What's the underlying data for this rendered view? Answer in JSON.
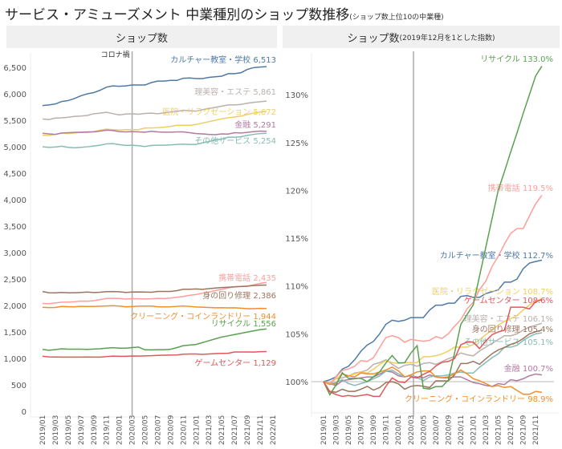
{
  "title": {
    "main": "サービス・アミューズメント 中業種別のショップ数推移",
    "sub": "(ショップ数上位10の中業種)"
  },
  "panels": {
    "left": {
      "header": "ショップ数"
    },
    "right": {
      "header_main": "ショップ数",
      "header_sub": "(2019年12月を1とした指数)"
    }
  },
  "chart_data": [
    {
      "type": "line",
      "title": "ショップ数",
      "annotation": "コロナ禍",
      "annotation_at": "2020/03",
      "x_start": "2019/01",
      "x_end": "2021/12",
      "x_tick_labels": [
        "2019/01",
        "2019/03",
        "2019/05",
        "2019/07",
        "2019/09",
        "2019/11",
        "2020/01",
        "2020/03",
        "2020/05",
        "2020/07",
        "2020/09",
        "2020/11",
        "2021/01",
        "2021/03",
        "2021/05",
        "2021/07",
        "2021/09",
        "2021/11",
        "2022/01"
      ],
      "ylim": [
        0,
        6800
      ],
      "y_ticks": [
        0,
        500,
        1000,
        1500,
        2000,
        2500,
        3000,
        3500,
        4000,
        4500,
        5000,
        5500,
        6000,
        6500
      ],
      "y_tick_labels": [
        "0",
        "500",
        "1,000",
        "1,500",
        "2,000",
        "2,500",
        "3,000",
        "3,500",
        "4,000",
        "4,500",
        "5,000",
        "5,500",
        "6,000",
        "6,500"
      ],
      "grid": false,
      "series": [
        {
          "name": "カルチャー教室・学校",
          "label": "カルチャー教室・学校 6,513",
          "color": "#4e79a7",
          "values": [
            5779,
            5790,
            5808,
            5855,
            5872,
            5912,
            5963,
            6000,
            6022,
            6068,
            6126,
            6150,
            6143,
            6150,
            6166,
            6166,
            6166,
            6212,
            6241,
            6241,
            6253,
            6253,
            6294,
            6299,
            6288,
            6288,
            6311,
            6322,
            6334,
            6380,
            6380,
            6398,
            6461,
            6495,
            6505,
            6513
          ]
        },
        {
          "name": "理美容・エステ",
          "label": "理美容・エステ 5,861",
          "color": "#bab0ac",
          "values": [
            5524,
            5513,
            5541,
            5546,
            5557,
            5574,
            5580,
            5591,
            5624,
            5634,
            5651,
            5624,
            5601,
            5618,
            5624,
            5613,
            5629,
            5634,
            5624,
            5640,
            5657,
            5668,
            5690,
            5679,
            5673,
            5701,
            5723,
            5745,
            5767,
            5789,
            5789,
            5800,
            5822,
            5839,
            5850,
            5861
          ]
        },
        {
          "name": "医院・リラクゼーション",
          "label": "医院・リラクゼーション 5,672",
          "color": "#f1ce63",
          "values": [
            5218,
            5213,
            5234,
            5260,
            5249,
            5260,
            5270,
            5265,
            5286,
            5312,
            5333,
            5322,
            5317,
            5322,
            5322,
            5322,
            5354,
            5354,
            5359,
            5369,
            5385,
            5406,
            5406,
            5406,
            5421,
            5448,
            5474,
            5500,
            5526,
            5547,
            5562,
            5578,
            5609,
            5636,
            5656,
            5672
          ]
        },
        {
          "name": "金融",
          "label": "金融 5,291",
          "color": "#b07aa1",
          "values": [
            5254,
            5243,
            5233,
            5259,
            5265,
            5270,
            5275,
            5280,
            5280,
            5296,
            5312,
            5307,
            5286,
            5280,
            5286,
            5280,
            5275,
            5291,
            5280,
            5275,
            5275,
            5280,
            5280,
            5265,
            5249,
            5243,
            5233,
            5228,
            5243,
            5238,
            5265,
            5259,
            5270,
            5286,
            5296,
            5291
          ]
        },
        {
          "name": "その他サービス",
          "label": "その他サービス 5,254",
          "color": "#86bcb6",
          "values": [
            4999,
            4989,
            4994,
            5009,
            4989,
            4979,
            4989,
            4999,
            5014,
            5029,
            5054,
            5059,
            5039,
            5024,
            5029,
            5019,
            5004,
            5024,
            5029,
            5029,
            5034,
            5044,
            5049,
            5044,
            5044,
            5074,
            5099,
            5124,
            5144,
            5179,
            5179,
            5189,
            5214,
            5234,
            5249,
            5254
          ]
        },
        {
          "name": "携帯電話",
          "label": "携帯電話 2,435",
          "color": "#ff9d9a",
          "values": [
            2038,
            2034,
            2048,
            2062,
            2065,
            2071,
            2083,
            2081,
            2089,
            2111,
            2132,
            2136,
            2132,
            2122,
            2128,
            2126,
            2124,
            2126,
            2134,
            2130,
            2140,
            2156,
            2170,
            2193,
            2207,
            2234,
            2252,
            2283,
            2305,
            2331,
            2354,
            2364,
            2364,
            2391,
            2417,
            2435
          ]
        },
        {
          "name": "身の回り修理",
          "label": "身の回り修理 2,386",
          "color": "#9c755f",
          "values": [
            2264,
            2241,
            2239,
            2246,
            2241,
            2241,
            2246,
            2253,
            2244,
            2250,
            2262,
            2264,
            2259,
            2246,
            2253,
            2255,
            2253,
            2250,
            2266,
            2266,
            2266,
            2280,
            2307,
            2307,
            2312,
            2305,
            2318,
            2330,
            2339,
            2345,
            2352,
            2357,
            2366,
            2377,
            2382,
            2386
          ]
        },
        {
          "name": "クリーニング・コインランドリー",
          "label": "クリーニング・コインランドリー 1,944",
          "color": "#f28e2b",
          "values": [
            1966,
            1960,
            1962,
            1982,
            1978,
            1976,
            1984,
            1982,
            1982,
            1986,
            1990,
            1996,
            1988,
            1976,
            1980,
            1986,
            1988,
            1988,
            1976,
            1974,
            1976,
            1982,
            1990,
            1982,
            1972,
            1968,
            1962,
            1956,
            1958,
            1954,
            1956,
            1948,
            1940,
            1940,
            1946,
            1944
          ]
        },
        {
          "name": "リサイクル",
          "label": "リサイクル 1,556",
          "color": "#59a14f",
          "values": [
            1170,
            1154,
            1166,
            1181,
            1174,
            1174,
            1174,
            1170,
            1176,
            1182,
            1193,
            1202,
            1193,
            1193,
            1205,
            1214,
            1162,
            1161,
            1164,
            1164,
            1172,
            1205,
            1240,
            1252,
            1264,
            1299,
            1334,
            1369,
            1404,
            1427,
            1451,
            1474,
            1498,
            1521,
            1544,
            1556
          ]
        },
        {
          "name": "ゲームセンター",
          "label": "ゲームセンター 1,129",
          "color": "#e15759",
          "values": [
            1040,
            1029,
            1026,
            1024,
            1025,
            1024,
            1025,
            1026,
            1024,
            1024,
            1035,
            1044,
            1040,
            1039,
            1045,
            1044,
            1048,
            1051,
            1057,
            1061,
            1062,
            1065,
            1080,
            1083,
            1083,
            1076,
            1084,
            1091,
            1094,
            1096,
            1121,
            1121,
            1121,
            1119,
            1127,
            1129
          ]
        }
      ]
    },
    {
      "type": "line",
      "title": "ショップ数(2019年12月を1とした指数)",
      "x_start": "2019/01",
      "x_end": "2021/12",
      "x_tick_labels": [
        "2019/01",
        "2019/03",
        "2019/05",
        "2019/07",
        "2019/09",
        "2019/11",
        "2020/01",
        "2020/03",
        "2020/05",
        "2020/07",
        "2020/09",
        "2020/11",
        "2021/01",
        "2021/03",
        "2021/05",
        "2021/07",
        "2021/09",
        "2021/11"
      ],
      "ylim": [
        97.5,
        134
      ],
      "y_ticks": [
        100,
        105,
        110,
        115,
        120,
        125,
        130
      ],
      "y_tick_labels": [
        "100%",
        "105%",
        "110%",
        "115%",
        "120%",
        "125%",
        "130%"
      ],
      "reference_line": 100,
      "grid": false,
      "values_source": "left series indexed to their 2019/01 value (×100)",
      "labels": [
        "カルチャー教室・学校 112.7%",
        "理美容・エステ 106.1%",
        "医院・リラクゼーション 108.7%",
        "金融 100.7%",
        "その他サービス 105.1%",
        "携帯電話 119.5%",
        "身の回り修理 105.4%",
        "クリーニング・コインランドリー 98.9%",
        "リサイクル 133.0%",
        "ゲームセンター 108.6%"
      ]
    }
  ]
}
